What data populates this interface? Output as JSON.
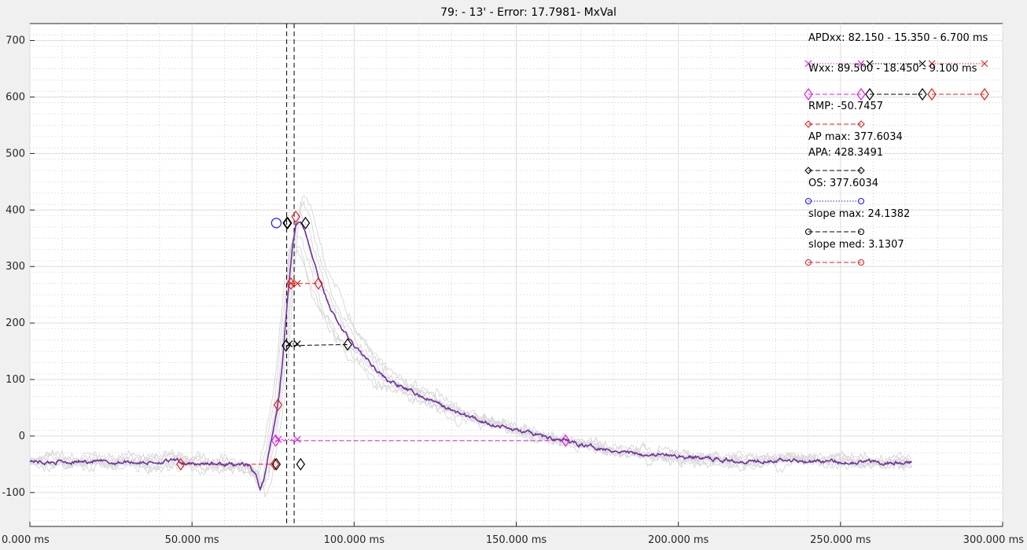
{
  "chart_data": {
    "type": "line",
    "title": "79: - 13'  - Error: 17.7981- MxVal",
    "xlabel": "",
    "ylabel": "",
    "xlim": [
      0,
      300
    ],
    "ylim": [
      -160,
      730
    ],
    "x_ticks": [
      0,
      50,
      100,
      150,
      200,
      250,
      300
    ],
    "x_tick_labels": [
      "0.000 ms",
      "50.000 ms",
      "100.000 ms",
      "150.000 ms",
      "200.000 ms",
      "250.000 ms",
      "300.000 ms"
    ],
    "y_ticks": [
      -100,
      0,
      100,
      200,
      300,
      400,
      500,
      600,
      700
    ],
    "y_tick_labels": [
      "-100",
      "0",
      "100",
      "200",
      "300",
      "400",
      "500",
      "600",
      "700"
    ],
    "grid": "major and minor (dotted)",
    "legend_position": "top-right",
    "colors": {
      "mean_trace": "#7030a0",
      "bg_traces": "#d9d9d9",
      "magenta": "#e020e0",
      "red": "#e02020",
      "black": "#000000",
      "blue": "#1a1aff"
    },
    "mean_trace": {
      "x": [
        0,
        5,
        10,
        15,
        20,
        25,
        30,
        35,
        40,
        45,
        50,
        55,
        60,
        65,
        68,
        70,
        71,
        72,
        73,
        74,
        75,
        76,
        77,
        78,
        79,
        80,
        81,
        82,
        83,
        84,
        85,
        86,
        88,
        90,
        92,
        95,
        98,
        100,
        105,
        110,
        115,
        120,
        125,
        130,
        140,
        150,
        160,
        170,
        180,
        190,
        200,
        210,
        220,
        230,
        240,
        250,
        260,
        265,
        270,
        272
      ],
      "y": [
        -43,
        -47,
        -45,
        -46,
        -44,
        -48,
        -45,
        -47,
        -46,
        -44,
        -50,
        -48,
        -51,
        -50,
        -55,
        -75,
        -92,
        -80,
        -55,
        -20,
        10,
        40,
        80,
        140,
        210,
        280,
        340,
        375,
        378,
        372,
        360,
        340,
        300,
        265,
        235,
        200,
        175,
        160,
        130,
        100,
        85,
        72,
        60,
        45,
        25,
        10,
        -3,
        -15,
        -25,
        -32,
        -36,
        -40,
        -44,
        -42,
        -44,
        -46,
        -45,
        -47,
        -48,
        -47
      ]
    },
    "markers": [
      {
        "series": "APDxx",
        "color": "#e020e0",
        "shape": "x",
        "points": [
          [
            76.6,
            -6
          ],
          [
            82.5,
            -6
          ]
        ]
      },
      {
        "series": "APDxx",
        "color": "#e020e0",
        "shape": "diamond",
        "points": [
          [
            75.8,
            -8
          ],
          [
            165.2,
            -8
          ]
        ]
      },
      {
        "series": "APDxx",
        "color": "#000000",
        "shape": "x",
        "points": [
          [
            80.0,
            163
          ],
          [
            82.5,
            163
          ]
        ]
      },
      {
        "series": "APDxx",
        "color": "#000000",
        "shape": "diamond",
        "points": [
          [
            79.0,
            160
          ],
          [
            98.0,
            162
          ]
        ]
      },
      {
        "series": "APDxx",
        "color": "#e02020",
        "shape": "x",
        "points": [
          [
            80.5,
            270
          ],
          [
            82.5,
            270
          ]
        ]
      },
      {
        "series": "APDxx",
        "color": "#e02020",
        "shape": "diamond",
        "points": [
          [
            80.5,
            270
          ],
          [
            89.0,
            270
          ]
        ]
      },
      {
        "series": "RMP",
        "color": "#e02020",
        "shape": "diamond",
        "points": [
          [
            46.5,
            -50
          ],
          [
            75.5,
            -50
          ]
        ]
      },
      {
        "series": "APA",
        "color": "#000000",
        "shape": "diamond",
        "points": [
          [
            76.0,
            -50
          ],
          [
            83.5,
            -50
          ],
          [
            79.5,
            377
          ],
          [
            85.0,
            377
          ]
        ]
      },
      {
        "series": "OS",
        "color": "#1a1aff",
        "shape": "circle",
        "points": [
          [
            76.0,
            377
          ]
        ]
      },
      {
        "series": "slope max",
        "color": "#000000",
        "shape": "diamond",
        "points": [
          [
            79.3,
            377
          ]
        ]
      },
      {
        "series": "slope med",
        "color": "#e02020",
        "shape": "diamond",
        "points": [
          [
            82.0,
            388
          ],
          [
            76.5,
            55
          ]
        ]
      }
    ],
    "vlines": [
      79.2,
      81.5
    ],
    "legend": [
      {
        "label": "APDxx: 82.150 - 15.350 - 6.700 ms",
        "style": "dotted",
        "shape": "x",
        "colors": [
          "#e020e0",
          "#000000",
          "#e02020"
        ]
      },
      {
        "label": "Wxx: 89.500 - 18.450 - 9.100 ms",
        "style": "dashed",
        "shape": "diamond",
        "colors": [
          "#e020e0",
          "#000000",
          "#e02020"
        ]
      },
      {
        "label": "RMP: -50.7457",
        "style": "dashed",
        "shape": "diamond",
        "colors": [
          "#e02020"
        ]
      },
      {
        "label": "AP max: 377.6034",
        "style": "none",
        "shape": "none",
        "colors": []
      },
      {
        "label": "APA: 428.3491",
        "style": "dashed",
        "shape": "diamond",
        "colors": [
          "#000000"
        ]
      },
      {
        "label": "OS: 377.6034",
        "style": "dotted",
        "shape": "circle",
        "colors": [
          "#1a1aff"
        ]
      },
      {
        "label": "slope max: 24.1382",
        "style": "dashed",
        "shape": "circle",
        "colors": [
          "#000000"
        ]
      },
      {
        "label": "slope med: 3.1307",
        "style": "dashed",
        "shape": "circle",
        "colors": [
          "#e02020"
        ]
      }
    ]
  }
}
